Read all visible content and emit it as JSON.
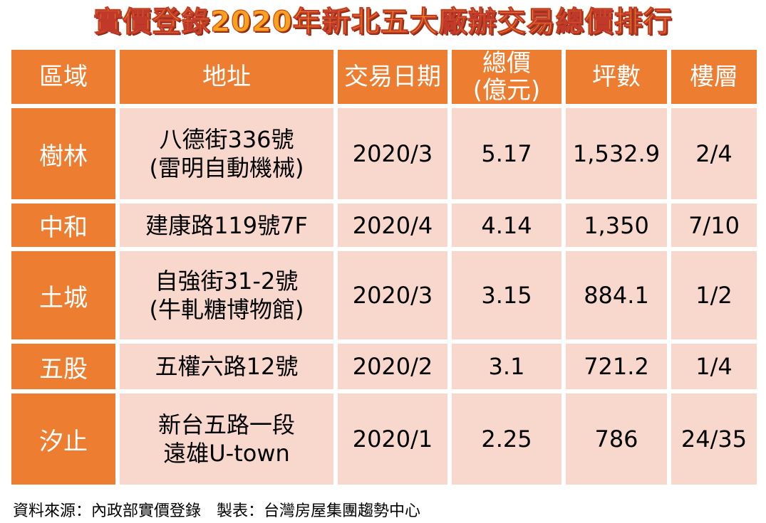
{
  "title": "實價登錄2020年新北五大廠辦交易總價排行",
  "headers": [
    "區域",
    "地址",
    "交易日期",
    "總價\n(億元)",
    "坪數",
    "樓層"
  ],
  "rows": [
    {
      "region": "樹林",
      "address": "八德街336號\n(雷明自動機械)",
      "date": "2020/3",
      "price": "5.17",
      "area": "1,532.9",
      "floor": "2/4"
    },
    {
      "region": "中和",
      "address": "建康路119號7F",
      "date": "2020/4",
      "price": "4.14",
      "area": "1,350",
      "floor": "7/10"
    },
    {
      "region": "土城",
      "address": "自強街31-2號\n(牛軋糖博物館)",
      "date": "2020/3",
      "price": "3.15",
      "area": "884.1",
      "floor": "1/2"
    },
    {
      "region": "五股",
      "address": "五權六路12號",
      "date": "2020/2",
      "price": "3.1",
      "area": "721.2",
      "floor": "1/4"
    },
    {
      "region": "汐止",
      "address": "新台五路一段\n遠雄U-town",
      "date": "2020/1",
      "price": "2.25",
      "area": "786",
      "floor": "24/35"
    }
  ],
  "footer": "資料來源：內政部實價登錄　製表：台灣房屋集團趨勢中心",
  "colors": {
    "header_bg": "#ed7d31",
    "cell_bg": "#f8d8cc",
    "title": "#f7a21b"
  }
}
